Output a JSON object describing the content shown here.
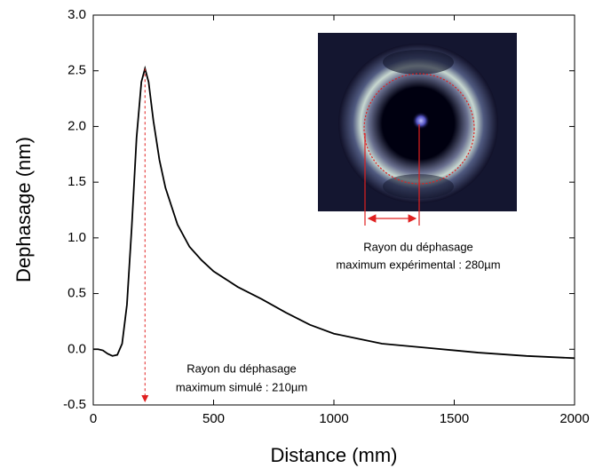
{
  "chart_data": {
    "type": "line",
    "x_label": "Distance (mm)",
    "y_label": "Dephasage (nm)",
    "x": [
      0,
      20,
      40,
      60,
      80,
      100,
      120,
      140,
      160,
      180,
      200,
      215,
      230,
      250,
      275,
      300,
      350,
      400,
      450,
      500,
      600,
      700,
      800,
      900,
      1000,
      1200,
      1400,
      1600,
      1800,
      2000
    ],
    "series": [
      {
        "color": "#000000",
        "values": [
          0,
          0,
          -0.01,
          -0.04,
          -0.06,
          -0.05,
          0.05,
          0.4,
          1.1,
          1.9,
          2.4,
          2.52,
          2.4,
          2.05,
          1.7,
          1.45,
          1.12,
          0.92,
          0.8,
          0.7,
          0.56,
          0.45,
          0.33,
          0.22,
          0.14,
          0.05,
          0.01,
          -0.03,
          -0.06,
          -0.08
        ]
      }
    ],
    "xlim": [
      0,
      2000
    ],
    "xticks": [
      0,
      500,
      1000,
      1500,
      2000
    ],
    "ylim": [
      -0.5,
      3.0
    ],
    "yticks": [
      -0.5,
      {
        "value": 0,
        "label": "0.0"
      },
      0.5,
      {
        "value": 1,
        "label": "1.0"
      },
      1.5,
      {
        "value": 2,
        "label": "2.0"
      },
      2.5,
      {
        "value": 3,
        "label": "3.0"
      }
    ],
    "annotations": [
      [
        "Rayon du déphasage",
        "maximum expérimental : 280µm"
      ],
      [
        "Rayon du déphasage",
        "maximum simulé : 210µm"
      ]
    ]
  }
}
